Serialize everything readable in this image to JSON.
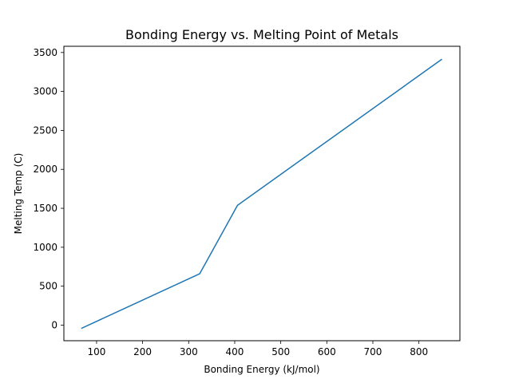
{
  "chart_data": {
    "type": "line",
    "title": "Bonding Energy vs. Melting Point of Metals",
    "xlabel": "Bonding Energy (kJ/mol)",
    "ylabel": "Melting Temp (C)",
    "xlim": [
      29,
      889
    ],
    "ylim": [
      -200,
      3580
    ],
    "xticks": [
      100,
      200,
      300,
      400,
      500,
      600,
      700,
      800
    ],
    "yticks": [
      0,
      500,
      1000,
      1500,
      2000,
      2500,
      3000,
      3500
    ],
    "grid": false,
    "series": [
      {
        "color": "#1f77b4",
        "x": [
          68,
          324,
          406,
          849
        ],
        "y": [
          -39,
          660,
          1538,
          3410
        ]
      }
    ]
  }
}
